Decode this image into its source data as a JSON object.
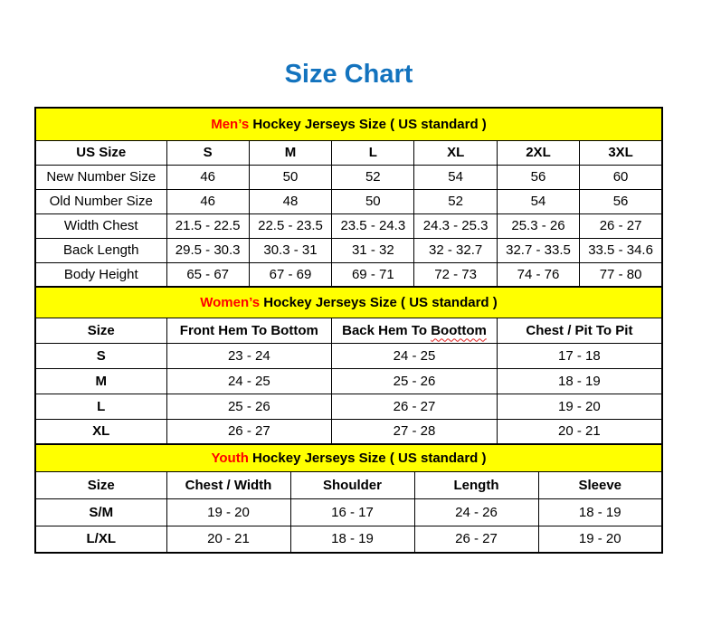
{
  "title": {
    "text": "Size Chart"
  },
  "colors": {
    "title_blue": "#1373BE",
    "banner_yellow": "#FFFF00",
    "accent_red": "#FF0000",
    "border_black": "#000000",
    "squiggle_red": "#E02020"
  },
  "sections": [
    {
      "name": "mens",
      "banner": {
        "highlight": "Men’s",
        "rest": "Hockey Jerseys Size ( US standard )"
      },
      "columns": [
        "US Size",
        "S",
        "M",
        "L",
        "XL",
        "2XL",
        "3XL"
      ],
      "rows": [
        {
          "label": "New Number Size",
          "values": [
            "46",
            "50",
            "52",
            "54",
            "56",
            "60"
          ]
        },
        {
          "label": "Old Number Size",
          "values": [
            "46",
            "48",
            "50",
            "52",
            "54",
            "56"
          ]
        },
        {
          "label": "Width Chest",
          "values": [
            "21.5 - 22.5",
            "22.5 - 23.5",
            "23.5 - 24.3",
            "24.3 - 25.3",
            "25.3 - 26",
            "26 - 27"
          ]
        },
        {
          "label": "Back Length",
          "values": [
            "29.5 - 30.3",
            "30.3 - 31",
            "31 - 32",
            "32 - 32.7",
            "32.7 - 33.5",
            "33.5 - 34.6"
          ]
        },
        {
          "label": "Body Height",
          "values": [
            "65 - 67",
            "67 - 69",
            "69 - 71",
            "72 - 73",
            "74 - 76",
            "77 - 80"
          ]
        }
      ]
    },
    {
      "name": "womens",
      "banner": {
        "highlight": "Women’s",
        "rest": "Hockey Jerseys Size ( US standard )"
      },
      "columns": [
        "Size",
        "Front Hem To Bottom",
        "Back Hem To",
        "Chest / Pit To Pit"
      ],
      "misspelled_word": "Boottom",
      "rows": [
        {
          "label": "S",
          "values": [
            "23 - 24",
            "24 - 25",
            "17 - 18"
          ]
        },
        {
          "label": "M",
          "values": [
            "24 - 25",
            "25 - 26",
            "18 - 19"
          ]
        },
        {
          "label": "L",
          "values": [
            "25 - 26",
            "26 - 27",
            "19 - 20"
          ]
        },
        {
          "label": "XL",
          "values": [
            "26 - 27",
            "27 - 28",
            "20 - 21"
          ]
        }
      ]
    },
    {
      "name": "youth",
      "banner": {
        "highlight": "Youth",
        "rest": "Hockey Jerseys Size ( US standard )"
      },
      "columns": [
        "Size",
        "Chest / Width",
        "Shoulder",
        "Length",
        "Sleeve"
      ],
      "rows": [
        {
          "label": "S/M",
          "values": [
            "19 - 20",
            "16 - 17",
            "24 - 26",
            "18 - 19"
          ]
        },
        {
          "label": "L/XL",
          "values": [
            "20 - 21",
            "18 - 19",
            "26 - 27",
            "19 - 20"
          ]
        }
      ]
    }
  ]
}
